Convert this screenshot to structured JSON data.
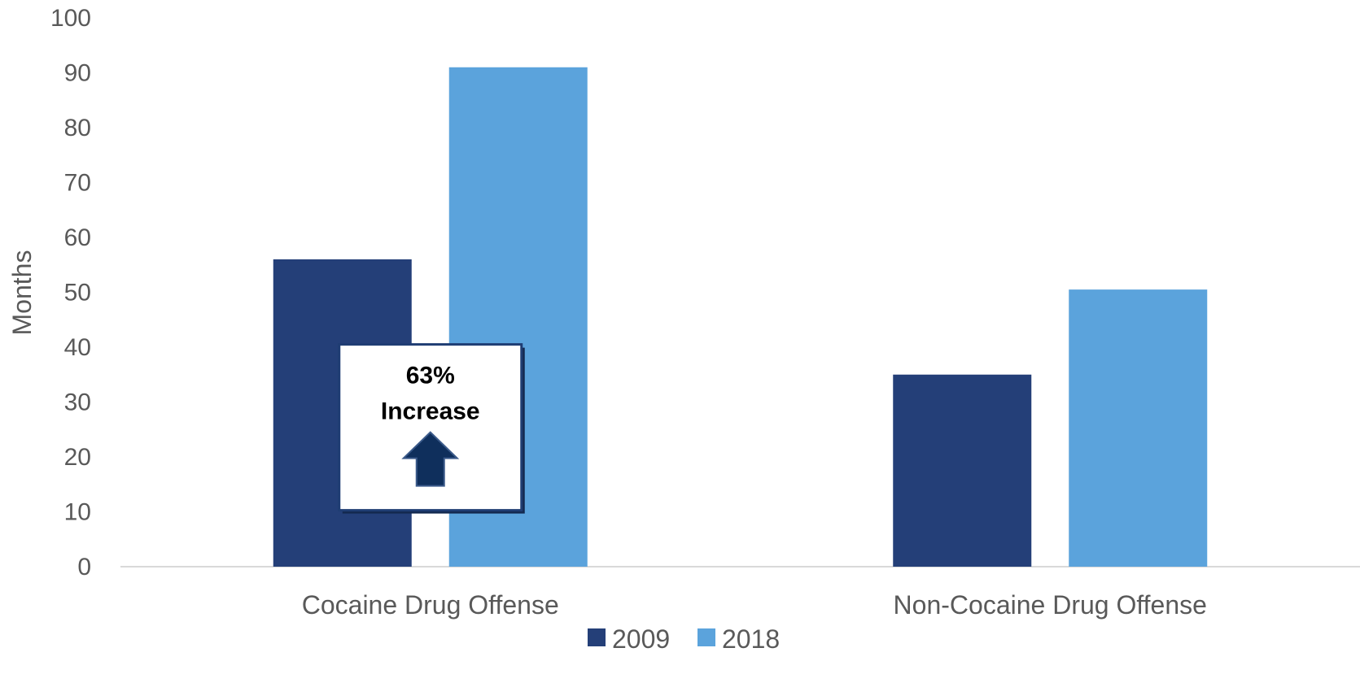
{
  "chart_data": {
    "type": "bar",
    "categories": [
      "Cocaine Drug Offense",
      "Non-Cocaine Drug Offense"
    ],
    "series": [
      {
        "name": "2009",
        "values": [
          56,
          35
        ],
        "color": "#243F78"
      },
      {
        "name": "2018",
        "values": [
          91,
          50.5
        ],
        "color": "#5BA3DC"
      }
    ],
    "title": "",
    "xlabel": "",
    "ylabel": "Months",
    "ylim": [
      0,
      100
    ],
    "yticks": [
      0,
      10,
      20,
      30,
      40,
      50,
      60,
      70,
      80,
      90,
      100
    ],
    "grid": false,
    "legend": "bottom-center",
    "annotation": {
      "lines": [
        "63%",
        "Increase"
      ],
      "icon": "up-arrow-icon",
      "category": "Cocaine Drug Offense",
      "border_color": "#1F3D73",
      "arrow_color": "#0F2F5C"
    }
  }
}
